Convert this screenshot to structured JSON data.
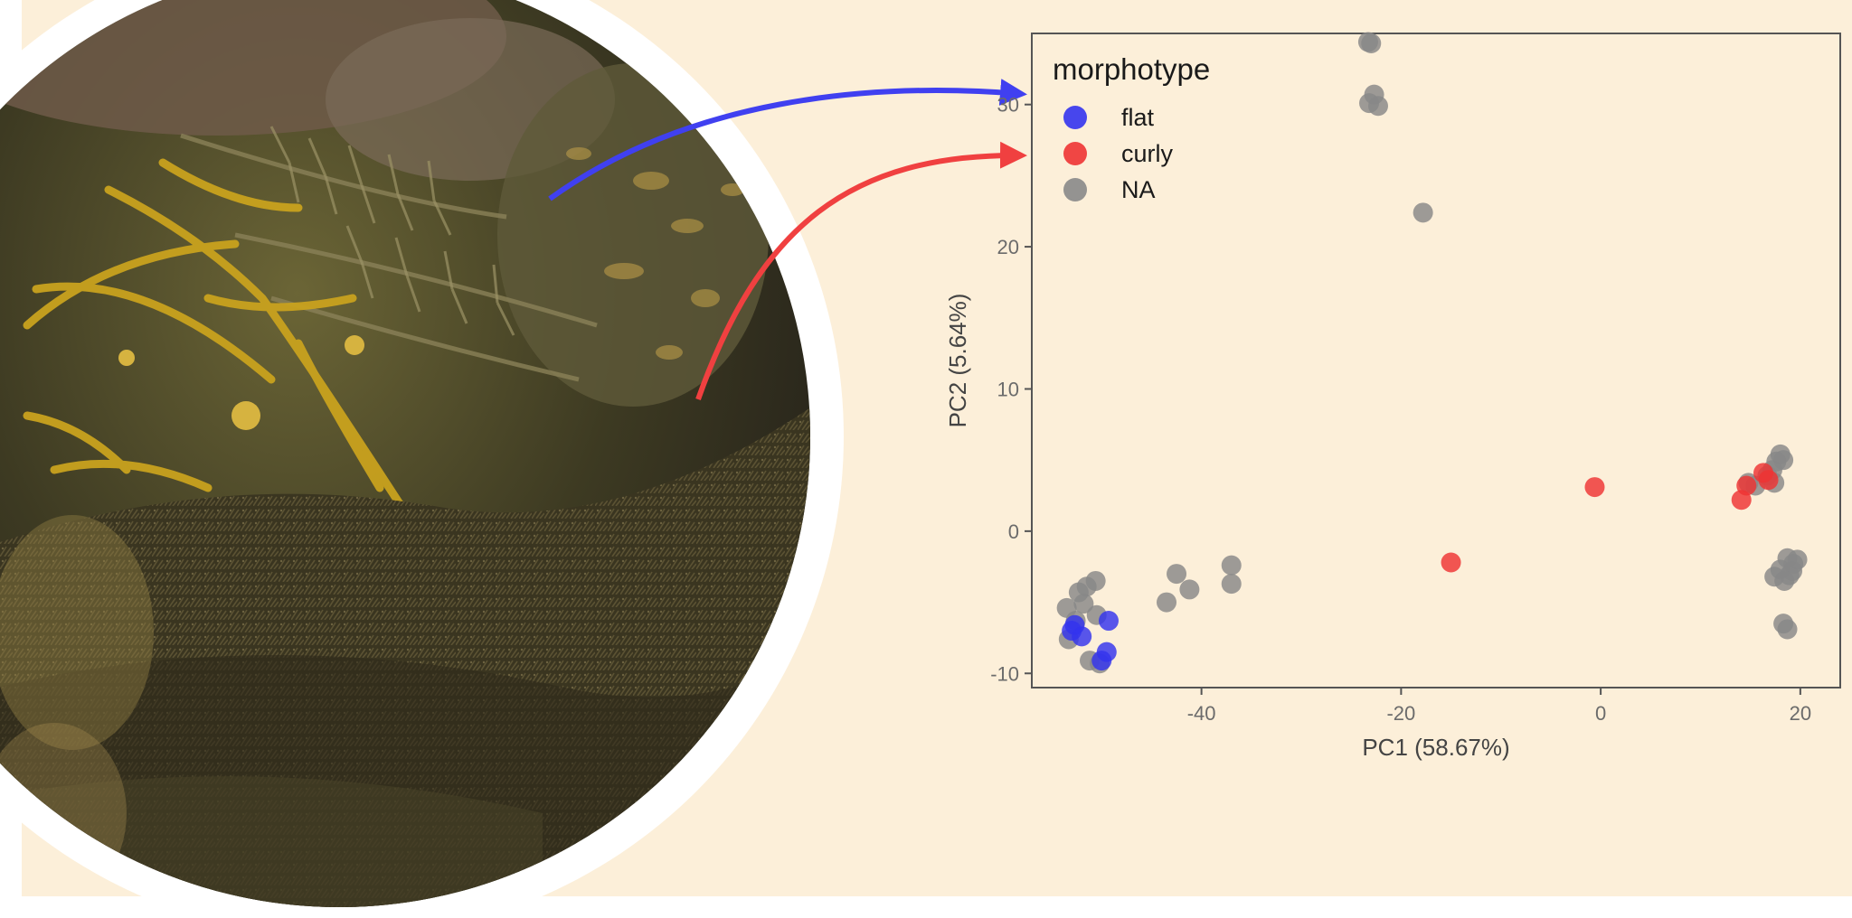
{
  "figure": {
    "photo_description_icon": "seaweed-photo",
    "colors": {
      "background": "#fcefd9",
      "flat": "#3333ee",
      "curly": "#ee3333",
      "na": "#888888",
      "frame": "#ffffff"
    }
  },
  "chart_data": {
    "type": "scatter",
    "title": "",
    "xlabel": "PC1 (58.67%)",
    "ylabel": "PC2 (5.64%)",
    "xlim": [
      -57,
      24
    ],
    "ylim": [
      -11,
      35
    ],
    "xticks": [
      -40,
      -20,
      0,
      20
    ],
    "yticks": [
      -10,
      0,
      10,
      20,
      30
    ],
    "grid": false,
    "legend": {
      "title": "morphotype",
      "placement": "top-left",
      "entries": [
        {
          "label": "flat",
          "color": "#3333ee"
        },
        {
          "label": "curly",
          "color": "#ee3333"
        },
        {
          "label": "NA",
          "color": "#888888"
        }
      ]
    },
    "series": [
      {
        "name": "NA",
        "color": "#888888",
        "points": [
          {
            "x": -23.3,
            "y": 34.4
          },
          {
            "x": -23.0,
            "y": 34.3
          },
          {
            "x": -22.7,
            "y": 30.7
          },
          {
            "x": -23.2,
            "y": 30.1
          },
          {
            "x": -22.3,
            "y": 29.9
          },
          {
            "x": -17.8,
            "y": 22.4
          },
          {
            "x": -43.5,
            "y": -5.0
          },
          {
            "x": -42.5,
            "y": -3.0
          },
          {
            "x": -41.2,
            "y": -4.1
          },
          {
            "x": -37.0,
            "y": -2.4
          },
          {
            "x": -37.0,
            "y": -3.7
          },
          {
            "x": -53.5,
            "y": -5.4
          },
          {
            "x": -52.3,
            "y": -4.3
          },
          {
            "x": -51.5,
            "y": -3.9
          },
          {
            "x": -50.6,
            "y": -3.5
          },
          {
            "x": -51.8,
            "y": -5.1
          },
          {
            "x": -50.5,
            "y": -5.9
          },
          {
            "x": -52.6,
            "y": -6.3
          },
          {
            "x": -53.3,
            "y": -7.6
          },
          {
            "x": -51.2,
            "y": -9.1
          },
          {
            "x": -50.2,
            "y": -9.3
          },
          {
            "x": 18.0,
            "y": 5.4
          },
          {
            "x": 17.6,
            "y": 4.9
          },
          {
            "x": 18.3,
            "y": 5.0
          },
          {
            "x": 17.2,
            "y": 4.3
          },
          {
            "x": 16.7,
            "y": 3.9
          },
          {
            "x": 17.4,
            "y": 3.4
          },
          {
            "x": 14.8,
            "y": 3.4
          },
          {
            "x": 15.5,
            "y": 3.2
          },
          {
            "x": 18.7,
            "y": -1.9
          },
          {
            "x": 19.3,
            "y": -2.3
          },
          {
            "x": 19.7,
            "y": -2.0
          },
          {
            "x": 18.0,
            "y": -2.7
          },
          {
            "x": 18.9,
            "y": -3.1
          },
          {
            "x": 17.4,
            "y": -3.2
          },
          {
            "x": 19.2,
            "y": -2.8
          },
          {
            "x": 18.4,
            "y": -3.5
          },
          {
            "x": 18.3,
            "y": -6.5
          },
          {
            "x": 18.7,
            "y": -6.9
          }
        ]
      },
      {
        "name": "curly",
        "color": "#ee3333",
        "points": [
          {
            "x": -15.0,
            "y": -2.2
          },
          {
            "x": -0.6,
            "y": 3.1
          },
          {
            "x": 14.1,
            "y": 2.2
          },
          {
            "x": 14.6,
            "y": 3.2
          },
          {
            "x": 16.3,
            "y": 4.1
          },
          {
            "x": 16.8,
            "y": 3.6
          }
        ]
      },
      {
        "name": "flat",
        "color": "#3333ee",
        "points": [
          {
            "x": -52.7,
            "y": -6.6
          },
          {
            "x": -53.0,
            "y": -7.0
          },
          {
            "x": -52.0,
            "y": -7.4
          },
          {
            "x": -49.3,
            "y": -6.3
          },
          {
            "x": -49.5,
            "y": -8.5
          },
          {
            "x": -50.0,
            "y": -9.1
          }
        ]
      }
    ]
  }
}
